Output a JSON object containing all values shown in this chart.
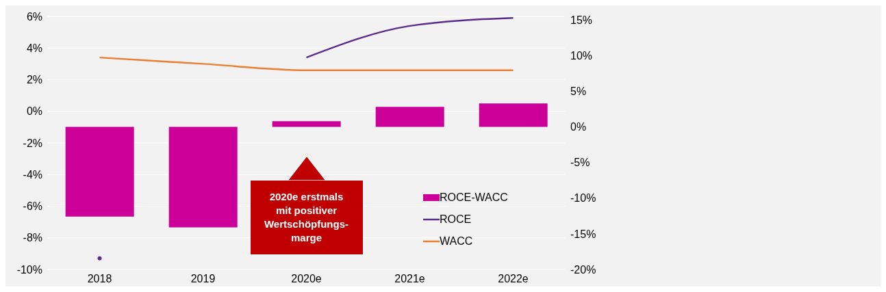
{
  "chart_data": {
    "type": "bar",
    "categories": [
      "2018",
      "2019",
      "2020e",
      "2021e",
      "2022e"
    ],
    "series": [
      {
        "name": "ROCE-WACC",
        "axis": "y2",
        "color": "#cc0099",
        "values": [
          -12.6,
          -14.1,
          0.8,
          2.8,
          3.3
        ]
      },
      {
        "name": "ROCE",
        "type": "line",
        "color": "#5b2c8a",
        "values": [
          -9.3,
          null,
          3.4,
          5.4,
          5.9
        ]
      },
      {
        "name": "WACC",
        "type": "line",
        "color": "#ed7d31",
        "values": [
          3.4,
          3.0,
          2.6,
          2.6,
          2.6
        ]
      }
    ],
    "ylim": [
      -10,
      6
    ],
    "yticks": [
      {
        "value": -10,
        "label": "-10%"
      },
      {
        "value": -8,
        "label": "-8%"
      },
      {
        "value": -6,
        "label": "-6%"
      },
      {
        "value": -4,
        "label": "-4%"
      },
      {
        "value": -2,
        "label": "-2%"
      },
      {
        "value": 0,
        "label": "0%"
      },
      {
        "value": 2,
        "label": "2%"
      },
      {
        "value": 4,
        "label": "4%"
      },
      {
        "value": 6,
        "label": "6%"
      }
    ],
    "y2lim": [
      -20,
      15.5
    ],
    "y2ticks": [
      {
        "value": -20,
        "label": "-20%"
      },
      {
        "value": -15,
        "label": "-15%"
      },
      {
        "value": -10,
        "label": "-10%"
      },
      {
        "value": -5,
        "label": "-5%"
      },
      {
        "value": 0,
        "label": "0%"
      },
      {
        "value": 5,
        "label": "5%"
      },
      {
        "value": 10,
        "label": "10%"
      },
      {
        "value": 15,
        "label": "15%"
      }
    ],
    "grid": "y",
    "legend": "bottom right",
    "marker": "none",
    "line_style": "solid",
    "annotations": [
      "2020e erstmals mit positiver Wertschöpfungs-marge"
    ]
  }
}
